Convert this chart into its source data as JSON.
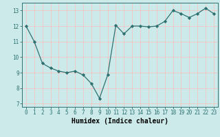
{
  "x": [
    0,
    1,
    2,
    3,
    4,
    5,
    6,
    7,
    8,
    9,
    10,
    11,
    12,
    13,
    14,
    15,
    16,
    17,
    18,
    19,
    20,
    21,
    22,
    23
  ],
  "y": [
    12.0,
    11.0,
    9.6,
    9.3,
    9.1,
    9.0,
    9.1,
    8.85,
    8.3,
    7.35,
    8.85,
    12.05,
    11.5,
    12.0,
    12.0,
    11.95,
    12.0,
    12.3,
    13.0,
    12.8,
    12.55,
    12.8,
    13.15,
    12.8
  ],
  "line_color": "#2d7070",
  "marker": "D",
  "marker_size": 2.2,
  "bg_color": "#cceaea",
  "grid_color": "#f0c8c8",
  "title": "",
  "xlabel": "Humidex (Indice chaleur)",
  "ylabel": "",
  "ylim": [
    6.8,
    13.5
  ],
  "xlim": [
    -0.5,
    23.5
  ],
  "yticks": [
    7,
    8,
    9,
    10,
    11,
    12,
    13
  ],
  "xticks": [
    0,
    1,
    2,
    3,
    4,
    5,
    6,
    7,
    8,
    9,
    10,
    11,
    12,
    13,
    14,
    15,
    16,
    17,
    18,
    19,
    20,
    21,
    22,
    23
  ],
  "tick_fontsize": 5.5,
  "xlabel_fontsize": 7.0
}
